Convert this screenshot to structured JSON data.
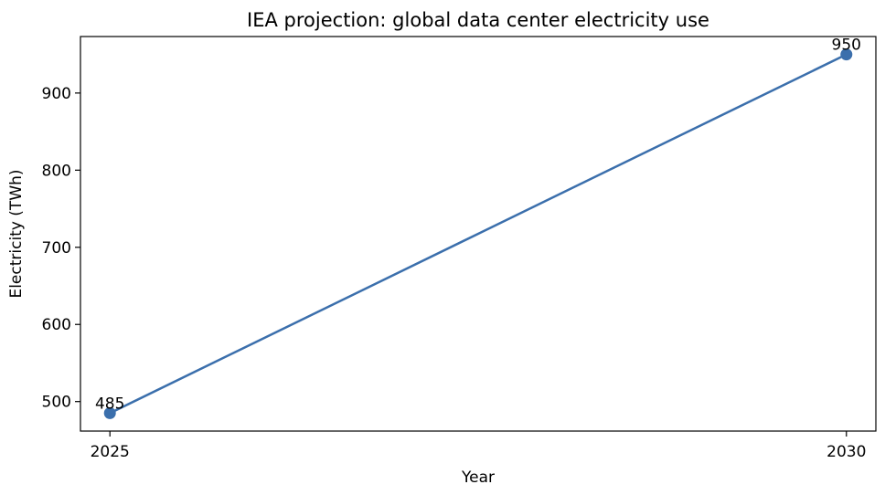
{
  "chart_data": {
    "type": "line",
    "title": "IEA projection: global data center electricity use",
    "xlabel": "Year",
    "ylabel": "Electricity (TWh)",
    "x": [
      2025,
      2030
    ],
    "x_tick_labels": [
      "2025",
      "2030"
    ],
    "xlim": [
      2024.8,
      2030.2
    ],
    "y_ticks": [
      500,
      600,
      700,
      800,
      900
    ],
    "y_tick_labels": [
      "500",
      "600",
      "700",
      "800",
      "900"
    ],
    "ylim": [
      461.75,
      973.25
    ],
    "series": [
      {
        "values": [
          485,
          950
        ],
        "data_labels": [
          "485",
          "950"
        ],
        "color": "#3b6fac",
        "marker": "circle"
      }
    ],
    "grid": false,
    "legend": "none"
  }
}
